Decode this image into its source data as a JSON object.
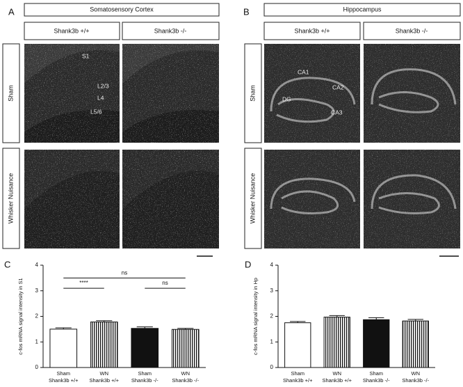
{
  "panel_labels": [
    "A",
    "B",
    "C",
    "D"
  ],
  "panel_a": {
    "title": "Somatosensory Cortex",
    "columns": [
      "Shank3b +/+",
      "Shank3b -/-"
    ],
    "rows": [
      "Sham",
      "Whisker Nuisance"
    ],
    "annotations": [
      "S1",
      "L2/3",
      "L4",
      "L5/6"
    ]
  },
  "panel_b": {
    "title": "Hippocampus",
    "columns": [
      "Shank3b +/+",
      "Shank3b -/-"
    ],
    "rows": [
      "Sham",
      "Whisker Nuisance"
    ],
    "annotations": [
      "CA1",
      "CA2",
      "DG",
      "CA3"
    ]
  },
  "chart_data": [
    {
      "type": "bar",
      "y_label": "c-fos mRNA signal intensity in S1",
      "categories": [
        [
          "Sham",
          "Shank3b +/+"
        ],
        [
          "WN",
          "Shank3b +/+"
        ],
        [
          "Sham",
          "Shank3b -/-"
        ],
        [
          "WN",
          "Shank3b -/-"
        ]
      ],
      "values": [
        1.5,
        1.78,
        1.53,
        1.49
      ],
      "errors": [
        0.05,
        0.05,
        0.06,
        0.04
      ],
      "bar_styles": [
        "open",
        "striped",
        "solid",
        "striped"
      ],
      "ylim": [
        0,
        4
      ],
      "yticks": [
        0,
        1,
        2,
        3,
        4
      ],
      "comparisons": [
        {
          "from": 0,
          "to": 3,
          "label": "ns"
        },
        {
          "from": 0,
          "to": 1,
          "label": "****"
        },
        {
          "from": 2,
          "to": 3,
          "label": "ns"
        }
      ]
    },
    {
      "type": "bar",
      "y_label": "c-fos mRNA signal intensity in Hp",
      "categories": [
        [
          "Sham",
          "Shank3b +/+"
        ],
        [
          "WN",
          "Shank3b +/+"
        ],
        [
          "Sham",
          "Shank3b -/-"
        ],
        [
          "WN",
          "Shank3b -/-"
        ]
      ],
      "values": [
        1.75,
        1.97,
        1.87,
        1.82
      ],
      "errors": [
        0.05,
        0.06,
        0.08,
        0.06
      ],
      "bar_styles": [
        "open",
        "striped",
        "solid",
        "striped"
      ],
      "ylim": [
        0,
        4
      ],
      "yticks": [
        0,
        1,
        2,
        3,
        4
      ]
    }
  ]
}
